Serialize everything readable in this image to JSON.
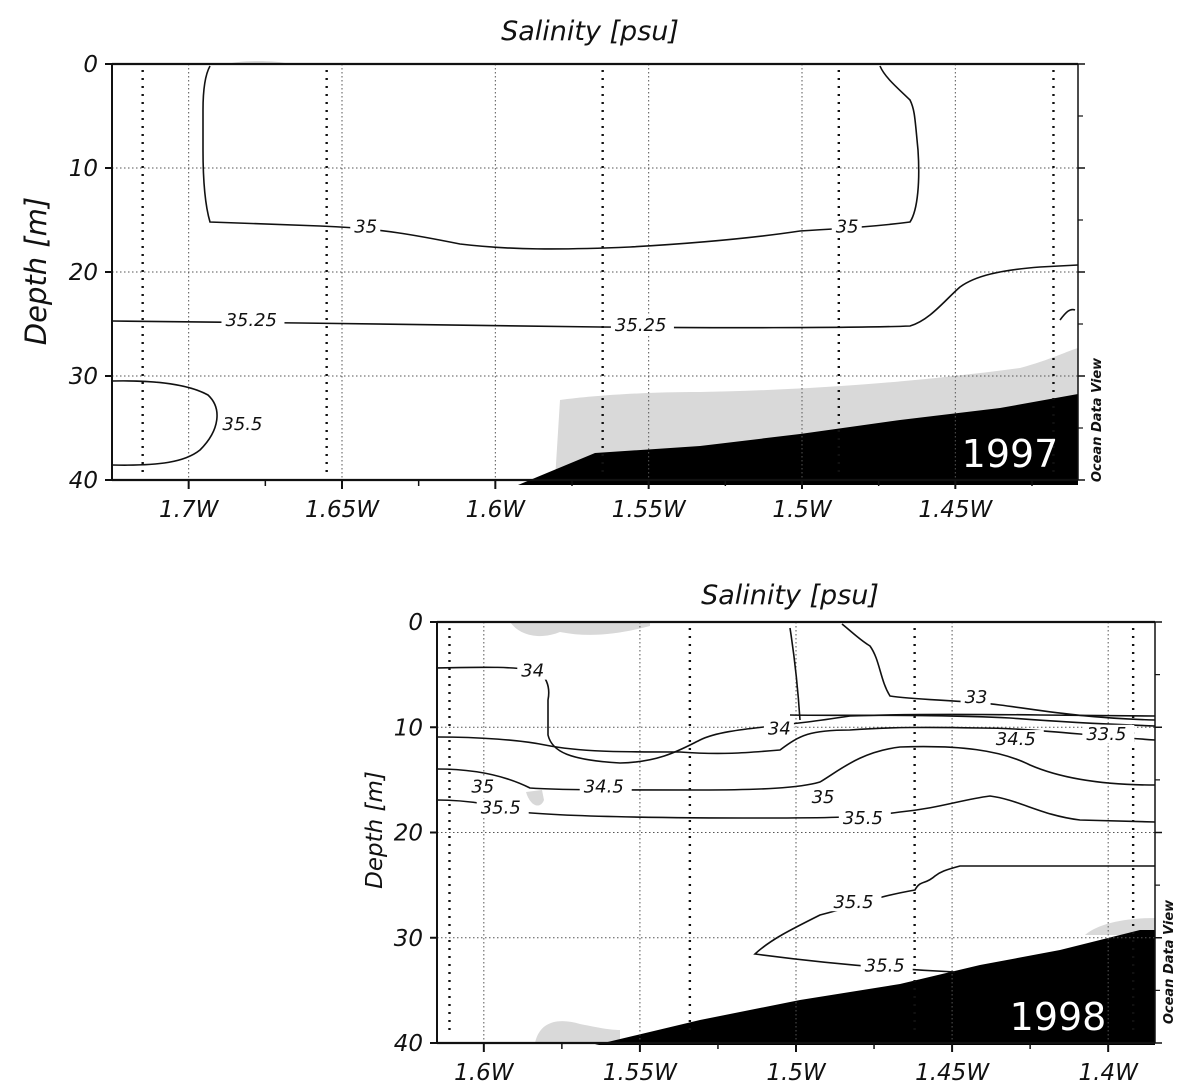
{
  "chart_data": [
    {
      "type": "contour",
      "title": "Salinity [psu]",
      "ylabel": "Depth [m]",
      "xlabel": "",
      "year_label": "1997",
      "credit": "Ocean Data View",
      "xlim": [
        -1.725,
        -1.41
      ],
      "ylim": [
        40,
        0
      ],
      "x_tick_labels": [
        "1.7W",
        "1.65W",
        "1.6W",
        "1.55W",
        "1.5W",
        "1.45W"
      ],
      "y_tick_labels": [
        "0",
        "10",
        "20",
        "30",
        "40"
      ],
      "station_longitudes": [
        -1.715,
        -1.655,
        -1.565,
        -1.488,
        -1.418
      ],
      "contour_labels": [
        {
          "text": "35",
          "lon": -1.646,
          "depth": 16
        },
        {
          "text": "35",
          "lon": -1.489,
          "depth": 16
        },
        {
          "text": "35.25",
          "lon": -1.688,
          "depth": 25
        },
        {
          "text": "35.25",
          "lon": -1.561,
          "depth": 25.5
        },
        {
          "text": "35.5",
          "lon": -1.689,
          "depth": 35
        }
      ]
    },
    {
      "type": "contour",
      "title": "Salinity [psu]",
      "ylabel": "Depth [m]",
      "xlabel": "",
      "year_label": "1998",
      "credit": "Ocean Data View",
      "xlim": [
        -1.615,
        -1.385
      ],
      "ylim": [
        40,
        0
      ],
      "x_tick_labels": [
        "1.6W",
        "1.55W",
        "1.5W",
        "1.45W",
        "1.4W"
      ],
      "y_tick_labels": [
        "0",
        "10",
        "20",
        "30",
        "40"
      ],
      "station_longitudes": [
        -1.611,
        -1.534,
        -1.462,
        -1.392
      ],
      "contour_labels": [
        {
          "text": "34",
          "lon": -1.588,
          "depth": 5
        },
        {
          "text": "34",
          "lon": -1.509,
          "depth": 10.5
        },
        {
          "text": "33",
          "lon": -1.446,
          "depth": 7.5
        },
        {
          "text": "33.5",
          "lon": -1.407,
          "depth": 11
        },
        {
          "text": "34.5",
          "lon": -1.568,
          "depth": 16
        },
        {
          "text": "34.5",
          "lon": -1.436,
          "depth": 11.5
        },
        {
          "text": "35",
          "lon": -1.604,
          "depth": 16
        },
        {
          "text": "35",
          "lon": -1.495,
          "depth": 17
        },
        {
          "text": "35.5",
          "lon": -1.601,
          "depth": 18
        },
        {
          "text": "35.5",
          "lon": -1.485,
          "depth": 19
        },
        {
          "text": "35.5",
          "lon": -1.488,
          "depth": 27
        },
        {
          "text": "35.5",
          "lon": -1.478,
          "depth": 33
        }
      ]
    }
  ]
}
